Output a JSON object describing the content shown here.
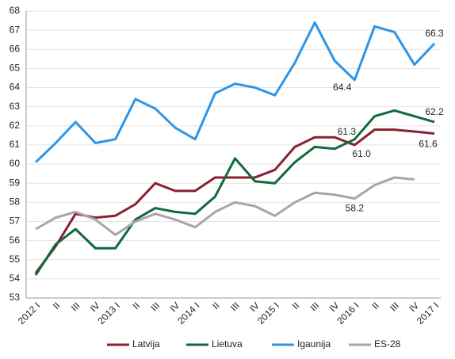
{
  "chart_data": {
    "type": "line",
    "categories": [
      "2012 I",
      "II",
      "III",
      "IV",
      "2013 I",
      "II",
      "III",
      "IV",
      "2014 I",
      "II",
      "III",
      "IV",
      "2015 I",
      "II",
      "III",
      "IV",
      "2016 I",
      "II",
      "III",
      "IV",
      "2017 I"
    ],
    "ylim": [
      53,
      68
    ],
    "yticks": [
      53,
      54,
      55,
      56,
      57,
      58,
      59,
      60,
      61,
      62,
      63,
      64,
      65,
      66,
      67,
      68
    ],
    "grid": true,
    "legend": "bottom",
    "series": [
      {
        "name": "Latvija",
        "color": "#8b2033",
        "values": [
          54.3,
          55.7,
          57.4,
          57.2,
          57.3,
          57.9,
          59.0,
          58.6,
          58.6,
          59.3,
          59.3,
          59.3,
          59.7,
          60.9,
          61.4,
          61.4,
          61.0,
          61.8,
          61.8,
          61.7,
          61.6
        ],
        "value_labels": [
          null,
          null,
          null,
          null,
          null,
          null,
          null,
          null,
          null,
          null,
          null,
          null,
          null,
          null,
          null,
          null,
          "61.0",
          null,
          null,
          null,
          "61.6"
        ]
      },
      {
        "name": "Lietuva",
        "color": "#0e6b3b",
        "values": [
          54.2,
          55.8,
          56.6,
          55.6,
          55.6,
          57.1,
          57.7,
          57.5,
          57.4,
          58.3,
          60.3,
          59.1,
          59.0,
          60.1,
          60.9,
          60.8,
          61.3,
          62.5,
          62.8,
          62.5,
          62.2
        ],
        "value_labels": [
          null,
          null,
          null,
          null,
          null,
          null,
          null,
          null,
          null,
          null,
          null,
          null,
          null,
          null,
          null,
          null,
          "61.3",
          null,
          null,
          null,
          "62.2"
        ]
      },
      {
        "name": "Igaunija",
        "color": "#2e95e6",
        "values": [
          60.1,
          61.1,
          62.2,
          61.1,
          61.3,
          63.4,
          62.9,
          61.9,
          61.3,
          63.7,
          64.2,
          64.0,
          63.6,
          65.3,
          67.4,
          65.4,
          64.4,
          67.2,
          66.9,
          65.2,
          66.3
        ],
        "value_labels": [
          null,
          null,
          null,
          null,
          null,
          null,
          null,
          null,
          null,
          null,
          null,
          null,
          null,
          null,
          null,
          null,
          "64.4",
          null,
          null,
          null,
          "66.3"
        ]
      },
      {
        "name": "ES-28",
        "color": "#a6a6a6",
        "values": [
          56.6,
          57.2,
          57.5,
          57.1,
          56.3,
          57.0,
          57.4,
          57.1,
          56.7,
          57.5,
          58.0,
          57.8,
          57.3,
          58.0,
          58.5,
          58.4,
          58.2,
          58.9,
          59.3,
          59.2,
          null
        ],
        "value_labels": [
          null,
          null,
          null,
          null,
          null,
          null,
          null,
          null,
          null,
          null,
          null,
          null,
          null,
          null,
          null,
          null,
          "58.2",
          null,
          null,
          null,
          null
        ]
      }
    ]
  }
}
